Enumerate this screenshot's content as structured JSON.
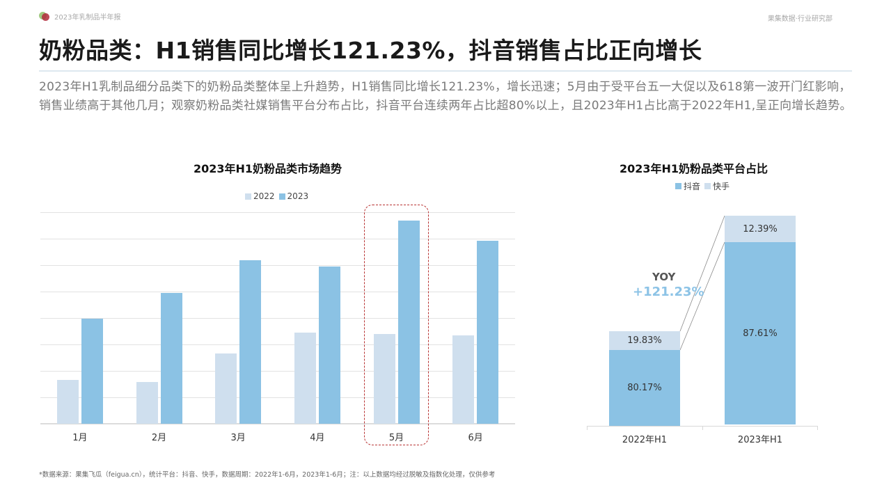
{
  "header": {
    "report_name": "2023年乳制品半年报",
    "department": "果集数据·行业研究部",
    "logo_icon": "overlapping-circles-logo-icon"
  },
  "page": {
    "title": "奶粉品类：H1销售同比增长121.23%，抖音销售占比正向增长",
    "summary": "2023年H1乳制品细分品类下的奶粉品类整体呈上升趋势，H1销售同比增长121.23%，增长迅速；5月由于受平台五一大促以及618第一波开门红影响，销售业绩高于其他几月；观察奶粉品类社媒销售平台分布占比，抖音平台连续两年占比超80%以上，且2023年H1占比高于2022年H1,呈正向增长趋势。"
  },
  "colors": {
    "series_2022": "#cfdfee",
    "series_2023": "#8bc2e4",
    "douyin": "#8bc2e4",
    "kuaishou": "#cfdfee",
    "highlight": "#b83232",
    "yoy": "#8cc3e6"
  },
  "chart_data": [
    {
      "type": "bar",
      "title": "2023年H1奶粉品类市场趋势",
      "categories": [
        "1月",
        "2月",
        "3月",
        "4月",
        "5月",
        "6月"
      ],
      "series": [
        {
          "name": "2022",
          "values": [
            1.66,
            1.58,
            2.66,
            3.45,
            3.39,
            3.34
          ]
        },
        {
          "name": "2023",
          "values": [
            3.97,
            4.95,
            6.18,
            5.95,
            7.68,
            6.92
          ]
        }
      ],
      "xlabel": "",
      "ylabel": "",
      "ylim": [
        0,
        8
      ],
      "grid": true,
      "yaxis_labels_visible": false,
      "legend_position": "top",
      "annotations": [
        "5月 highlighted with dashed red box"
      ]
    },
    {
      "type": "bar",
      "stacked": true,
      "percent": true,
      "title": "2023年H1奶粉品类平台占比",
      "categories": [
        "2022年H1",
        "2023年H1"
      ],
      "series": [
        {
          "name": "抖音",
          "values": [
            80.17,
            87.61
          ]
        },
        {
          "name": "快手",
          "values": [
            19.83,
            12.39
          ]
        }
      ],
      "relative_bar_heights": [
        136,
        302
      ],
      "legend_position": "top",
      "annotations": [
        "YOY",
        "+121.23%"
      ]
    }
  ],
  "left_chart": {
    "title": "2023年H1奶粉品类市场趋势",
    "legend": [
      {
        "label": "2022"
      },
      {
        "label": "2023"
      }
    ],
    "months": [
      {
        "label": "1月",
        "v2022": 1.66,
        "v2023": 3.97
      },
      {
        "label": "2月",
        "v2022": 1.58,
        "v2023": 4.95
      },
      {
        "label": "3月",
        "v2022": 2.66,
        "v2023": 6.18
      },
      {
        "label": "4月",
        "v2022": 3.45,
        "v2023": 5.95
      },
      {
        "label": "5月",
        "v2022": 3.39,
        "v2023": 7.68
      },
      {
        "label": "6月",
        "v2022": 3.34,
        "v2023": 6.92
      }
    ],
    "highlight_month": "5月"
  },
  "right_chart": {
    "title": "2023年H1奶粉品类平台占比",
    "legend": [
      {
        "label": "抖音"
      },
      {
        "label": "快手"
      }
    ],
    "bars": [
      {
        "label": "2022年H1",
        "douyin": "80.17%",
        "kuaishou": "19.83%"
      },
      {
        "label": "2023年H1",
        "douyin": "87.61%",
        "kuaishou": "12.39%"
      }
    ],
    "yoy_label": "YOY",
    "yoy_value": "+121.23%"
  },
  "footer": {
    "note": "*数据来源：果集飞瓜（feigua.cn），统计平台：抖音、快手，数据周期：2022年1-6月，2023年1-6月；注：以上数据均经过脱敏及指数化处理，仅供参考"
  }
}
